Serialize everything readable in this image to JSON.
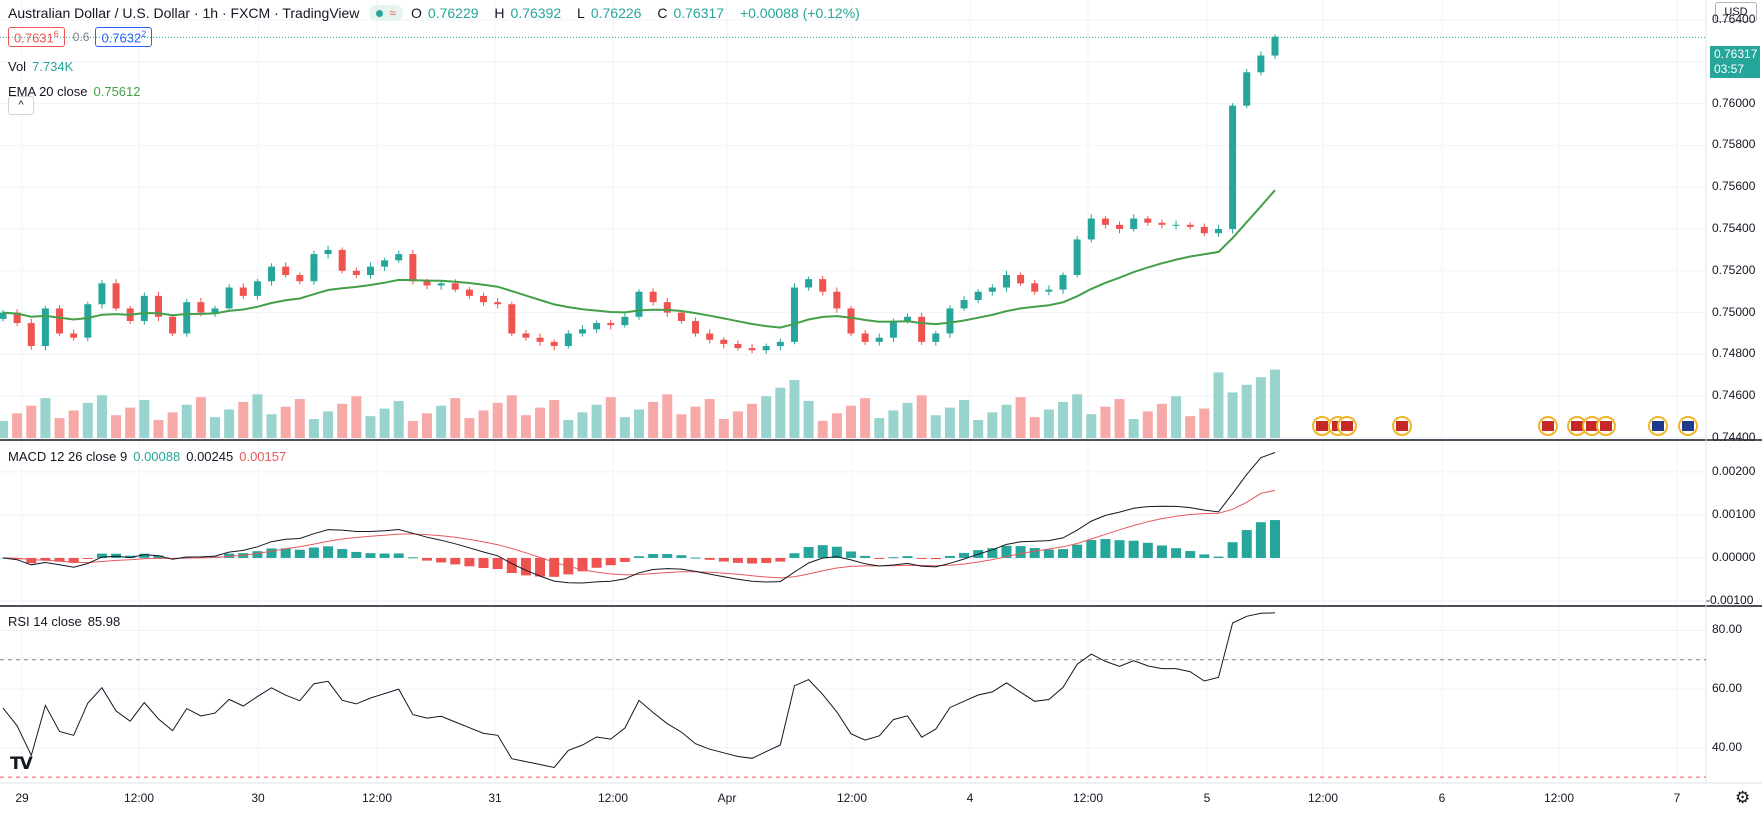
{
  "header": {
    "title": "Australian Dollar / U.S. Dollar · 1h · FXCM · TradingView",
    "ohlc": [
      {
        "k": "O",
        "v": "0.76229"
      },
      {
        "k": "H",
        "v": "0.76392"
      },
      {
        "k": "L",
        "v": "0.76226"
      },
      {
        "k": "C",
        "v": "0.76317"
      }
    ],
    "change": "+0.00088 (+0.12%)",
    "bid": "0.7631",
    "bid_sup": "6",
    "spread": "0.6",
    "ask": "0.7632",
    "ask_sup": "2"
  },
  "indicators": {
    "vol_label": "Vol",
    "vol_value": "7.734K",
    "ema_label": "EMA 20 close",
    "ema_value": "0.75612",
    "macd_label": "MACD 12 26 close 9",
    "macd_v1": "0.00088",
    "macd_v2": "0.00245",
    "macd_v3": "0.00157",
    "rsi_label": "RSI 14 close",
    "rsi_value": "85.98"
  },
  "controls": {
    "currency": "USD",
    "collapse": "^"
  },
  "last_price": {
    "price": "0.76317",
    "countdown": "03:57"
  },
  "price_axis": [
    "0.76400",
    "0.76200",
    "0.76000",
    "0.75800",
    "0.75600",
    "0.75400",
    "0.75200",
    "0.75000",
    "0.74800",
    "0.74600",
    "0.74400"
  ],
  "macd_axis": [
    "0.00200",
    "0.00100",
    "0.00000",
    "-0.00100"
  ],
  "rsi_axis": [
    "80.00",
    "60.00",
    "40.00"
  ],
  "time_axis": [
    "29",
    "12:00",
    "30",
    "12:00",
    "31",
    "12:00",
    "Apr",
    "12:00",
    "4",
    "12:00",
    "5",
    "12:00",
    "6",
    "12:00",
    "7"
  ],
  "colors": {
    "up": "#26a69a",
    "down": "#ef5350",
    "ema": "#43a047",
    "macd": "#131722",
    "signal": "#e4595c",
    "grid": "#f0f3fa"
  },
  "icons": {
    "logo": "tradingview-logo-icon",
    "settings": "gear-icon",
    "flag": "us-flag-icon"
  },
  "chart_data": {
    "type": "candlestick",
    "symbol": "AUDUSD",
    "close_series_approx": [
      0.75,
      0.7495,
      0.7484,
      0.7502,
      0.749,
      0.7488,
      0.7504,
      0.7514,
      0.7502,
      0.7496,
      0.7508,
      0.7498,
      0.749,
      0.7505,
      0.75,
      0.7502,
      0.7512,
      0.7508,
      0.7515,
      0.7522,
      0.7518,
      0.7515,
      0.7528,
      0.753,
      0.752,
      0.7518,
      0.7522,
      0.7525,
      0.7528,
      0.7515,
      0.7513,
      0.7514,
      0.7511,
      0.7508,
      0.7505,
      0.7504,
      0.749,
      0.7488,
      0.7486,
      0.7484,
      0.749,
      0.7492,
      0.7495,
      0.7494,
      0.7498,
      0.751,
      0.7505,
      0.75,
      0.7496,
      0.749,
      0.7487,
      0.7485,
      0.7483,
      0.7482,
      0.7484,
      0.7486,
      0.7512,
      0.7516,
      0.751,
      0.7502,
      0.749,
      0.7486,
      0.7488,
      0.7496,
      0.7498,
      0.7486,
      0.749,
      0.7502,
      0.7506,
      0.751,
      0.7512,
      0.7518,
      0.7514,
      0.751,
      0.7511,
      0.7518,
      0.7535,
      0.7545,
      0.7542,
      0.754,
      0.7545,
      0.7543,
      0.7542,
      0.7542,
      0.7541,
      0.7538,
      0.754,
      0.7599,
      0.7615,
      0.7623,
      0.7632
    ],
    "ema_last": 0.75612,
    "rsi_last": 85.98,
    "macd_last": 0.00245,
    "signal_last": 0.00157,
    "hist_last": 0.00088,
    "ylim_price": [
      0.744,
      0.764
    ],
    "ylim_macd": [
      -0.001,
      0.0026
    ],
    "ylim_rsi": [
      28,
      88
    ]
  }
}
